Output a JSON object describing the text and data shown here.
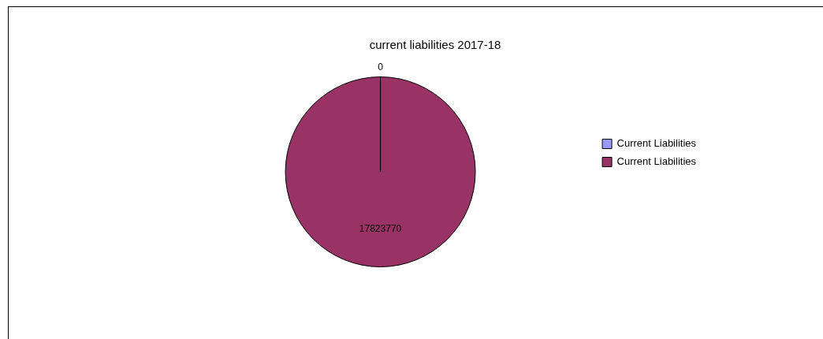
{
  "chart_data": {
    "type": "pie",
    "title": "current liabilities 2017-18",
    "categories": [
      "Current Liabilities",
      "Current Liabilities"
    ],
    "values": [
      0,
      17823770
    ],
    "colors": [
      "#9999ff",
      "#993366"
    ],
    "value_labels": [
      "0",
      "17823770"
    ],
    "legend": "right"
  }
}
